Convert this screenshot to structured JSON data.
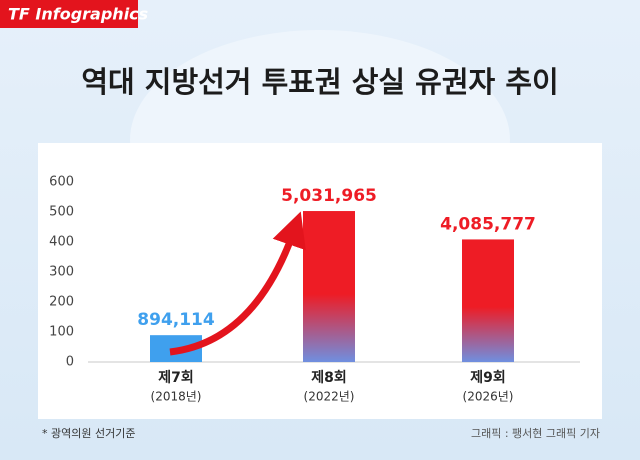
{
  "brand": "TF Infographics",
  "chart_data": {
    "type": "bar",
    "title": "역대 지방선거 투표권 상실 유권자 추이",
    "categories": [
      "제7회",
      "제8회",
      "제9회"
    ],
    "category_sublabels": [
      "(2018년)",
      "(2022년)",
      "(2026년)"
    ],
    "values": [
      89.4114,
      503.1965,
      408.5777
    ],
    "value_labels": [
      "894,114",
      "5,031,965",
      "4,085,777"
    ],
    "colors": [
      "#3fa0ee",
      "#ee1c25",
      "#ee1c25"
    ],
    "ylim": [
      0,
      600
    ],
    "yticks": [
      0,
      100,
      200,
      300,
      400,
      500,
      600
    ],
    "grid": false,
    "footnote": "* 광역의원 선거기준",
    "credit": "그래픽 : 팽서현 그래픽 기자"
  }
}
